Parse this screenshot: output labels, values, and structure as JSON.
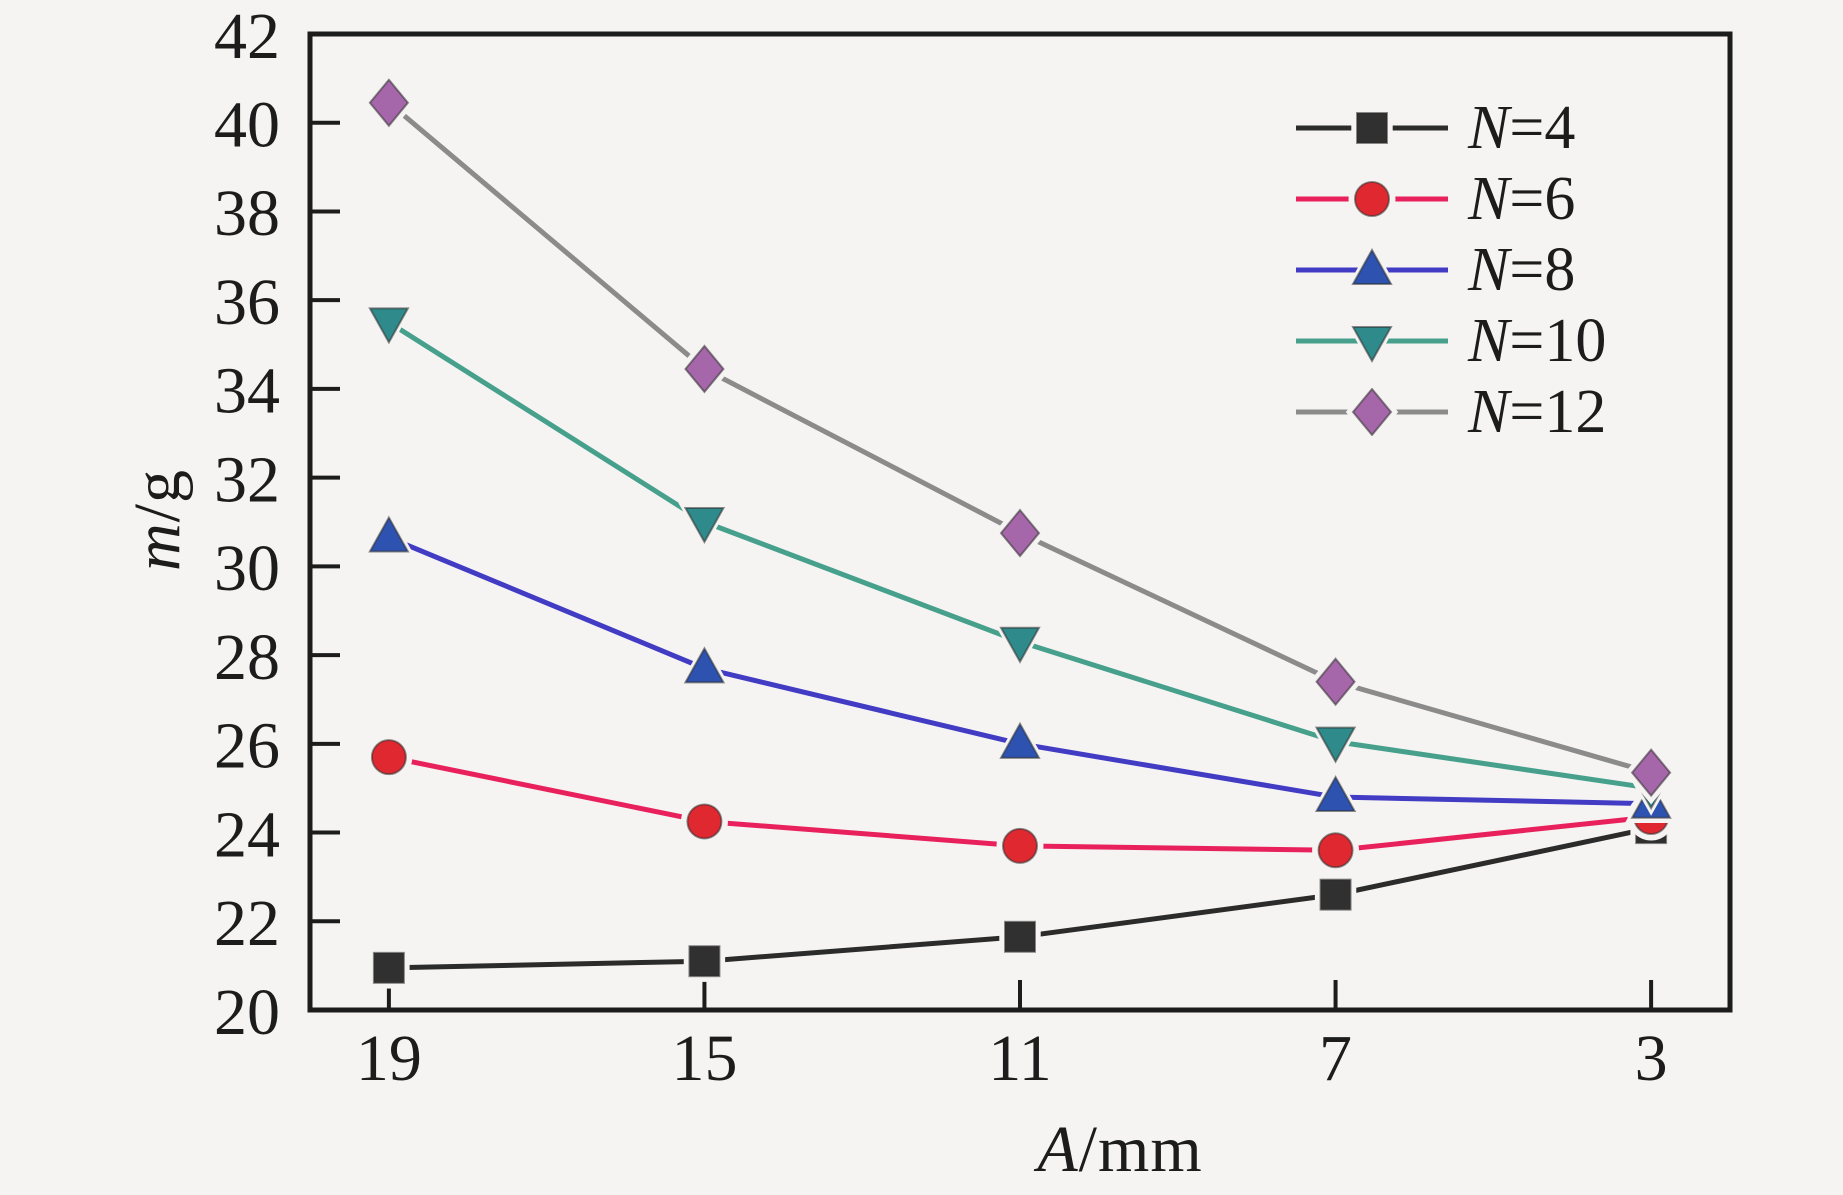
{
  "figure": {
    "background": "#f5f4f2",
    "frame_color": "#1c1c1c",
    "text_color": "#1c1c1c"
  },
  "chart_data": {
    "type": "line",
    "title": "",
    "xlabel": "A/mm",
    "ylabel": "m/g",
    "categories": [
      19,
      15,
      11,
      7,
      3
    ],
    "x_tick_labels": [
      "19",
      "15",
      "11",
      "7",
      "3"
    ],
    "x_axis_range": [
      20,
      2
    ],
    "x_axis_reversed": true,
    "ylim": [
      20,
      42
    ],
    "y_ticks": [
      20,
      22,
      24,
      26,
      28,
      30,
      32,
      34,
      36,
      38,
      40,
      42
    ],
    "grid": false,
    "legend_position": "top-right-inside",
    "series": [
      {
        "name": "N=4",
        "marker": "square",
        "line_color": "#2b2b2b",
        "marker_color": "#303030",
        "values": [
          20.95,
          21.1,
          21.65,
          22.6,
          24.1
        ]
      },
      {
        "name": "N=6",
        "marker": "circle",
        "line_color": "#e8215d",
        "marker_color": "#e02830",
        "values": [
          25.7,
          24.25,
          23.7,
          23.6,
          24.35
        ]
      },
      {
        "name": "N=8",
        "marker": "triangle-up",
        "line_color": "#423bc4",
        "marker_color": "#2d52b0",
        "values": [
          30.65,
          27.7,
          26.0,
          24.8,
          24.65
        ]
      },
      {
        "name": "N=10",
        "marker": "triangle-down",
        "line_color": "#46a08c",
        "marker_color": "#2f8b8b",
        "values": [
          35.5,
          31.0,
          28.3,
          26.05,
          25.0
        ]
      },
      {
        "name": "N=12",
        "marker": "diamond",
        "line_color": "#8b8b8b",
        "marker_color": "#a667aa",
        "values": [
          40.45,
          34.45,
          30.75,
          27.4,
          25.35
        ]
      }
    ]
  }
}
